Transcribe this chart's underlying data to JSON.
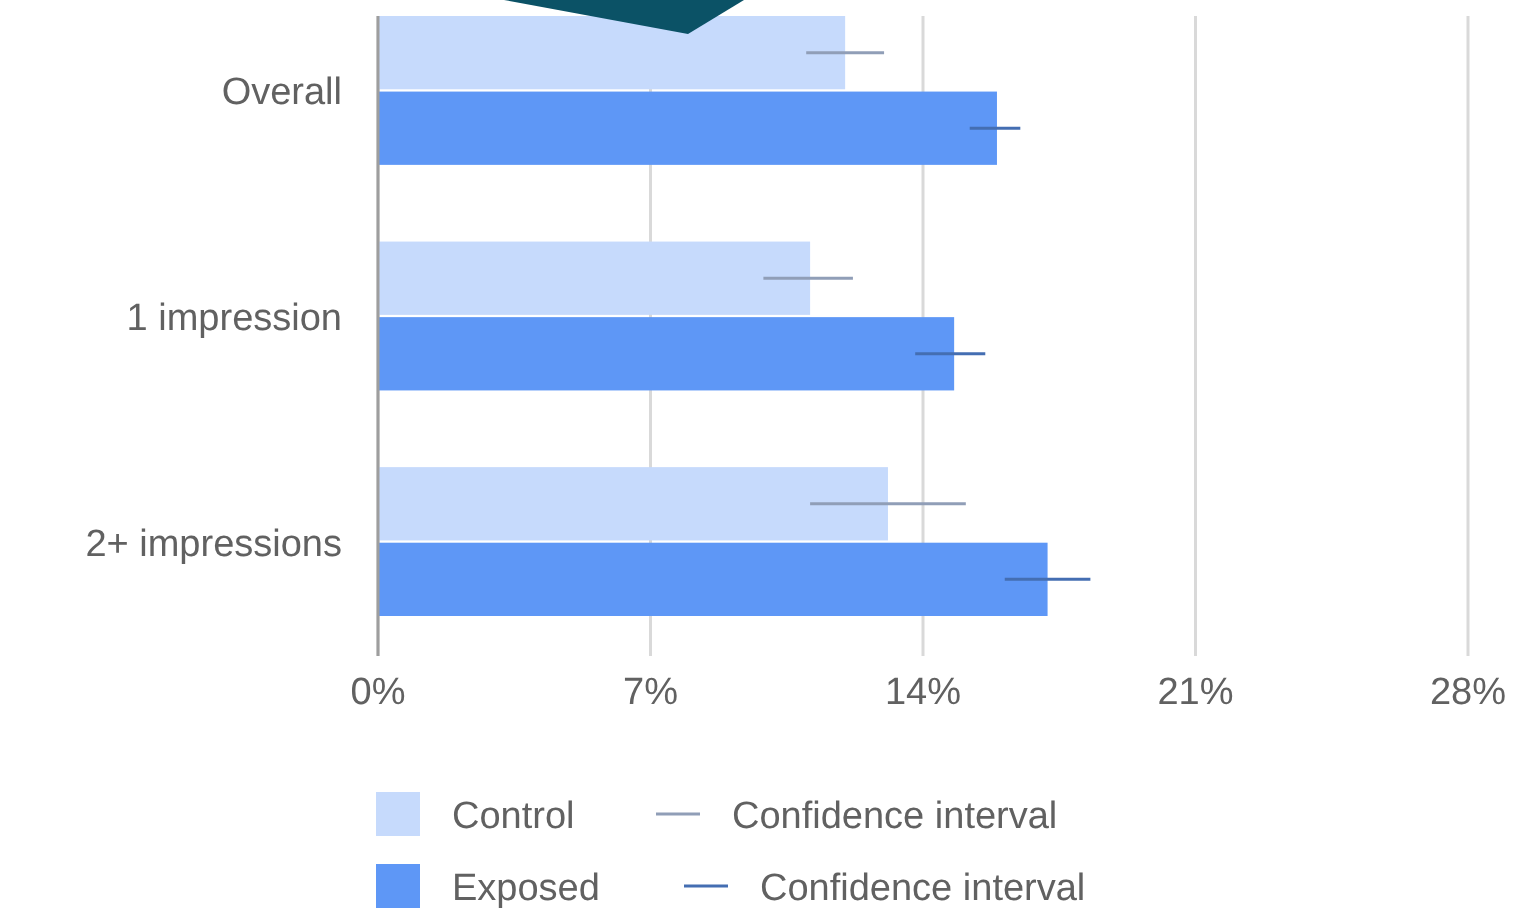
{
  "chart_data": {
    "type": "bar",
    "orientation": "horizontal",
    "categories": [
      "Overall",
      "1 impression",
      "2+ impressions"
    ],
    "series": [
      {
        "name": "Control",
        "color": "#c6dafc",
        "values": [
          12.0,
          11.1,
          13.1
        ],
        "errors": [
          [
            11.0,
            13.0
          ],
          [
            9.9,
            12.2
          ],
          [
            11.1,
            15.1
          ]
        ]
      },
      {
        "name": "Exposed",
        "color": "#5e97f6",
        "values": [
          15.9,
          14.8,
          17.2
        ],
        "errors": [
          [
            15.2,
            16.5
          ],
          [
            13.8,
            15.6
          ],
          [
            16.1,
            18.3
          ]
        ]
      }
    ],
    "xlim": [
      0,
      28
    ],
    "xticks": [
      {
        "value": 0,
        "label": "0%"
      },
      {
        "value": 7,
        "label": "7%"
      },
      {
        "value": 14,
        "label": "14%"
      },
      {
        "value": 21,
        "label": "21%"
      },
      {
        "value": 28,
        "label": "28%"
      }
    ],
    "grid": "x",
    "legend": "bottom",
    "annotations": [
      "Confidence interval",
      "Confidence interval"
    ]
  }
}
